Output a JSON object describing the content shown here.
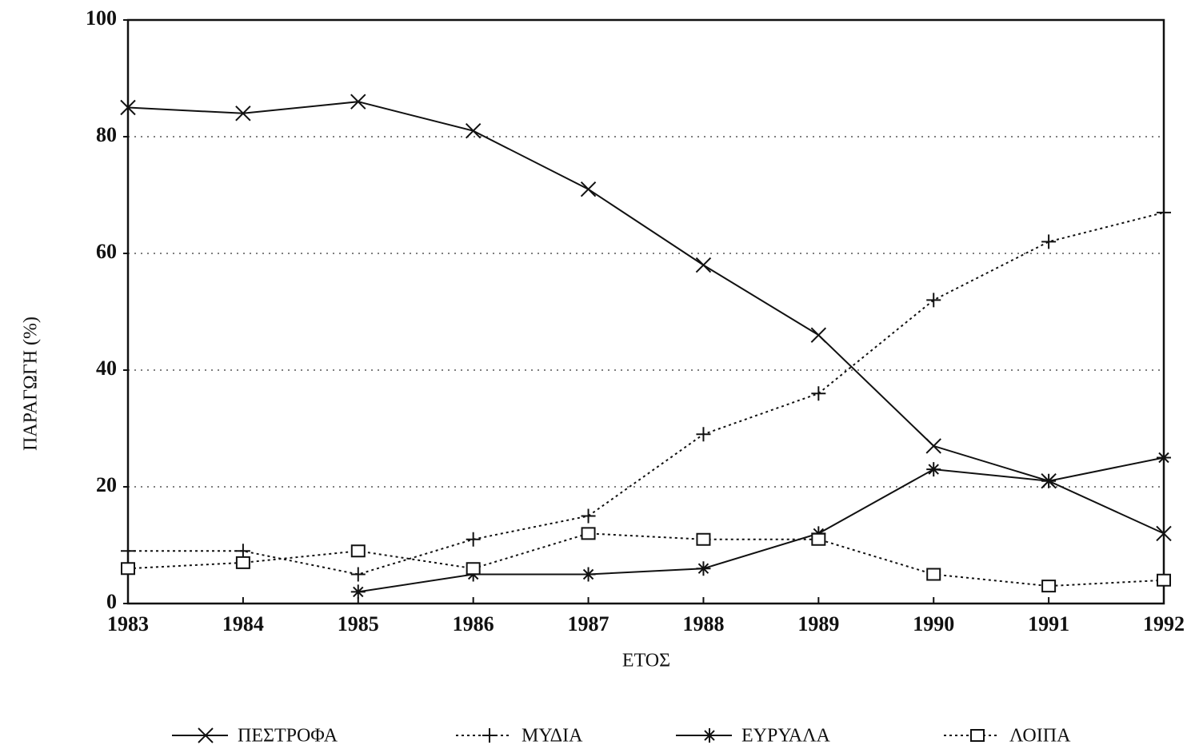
{
  "chart_data": {
    "type": "line",
    "xlabel": "ΕΤΟΣ",
    "ylabel": "ΠΑΡΑΓΩΓΗ (%)",
    "x": [
      1983,
      1984,
      1985,
      1986,
      1987,
      1988,
      1989,
      1990,
      1991,
      1992
    ],
    "xlim": [
      1983,
      1992
    ],
    "xticks": [
      1983,
      1984,
      1985,
      1986,
      1987,
      1988,
      1989,
      1990,
      1991,
      1992
    ],
    "ylim": [
      0,
      100
    ],
    "yticks": [
      0,
      20,
      40,
      60,
      80,
      100
    ],
    "grid": true,
    "series": [
      {
        "name": "ΠΕΣΤΡΟΦΑ",
        "color": "#111111",
        "marker": "x",
        "line_style": "solid",
        "values": [
          85,
          84,
          86,
          81,
          71,
          58,
          46,
          27,
          21,
          12
        ]
      },
      {
        "name": "ΜΥΔΙΑ",
        "color": "#111111",
        "marker": "plus",
        "line_style": "dotted",
        "values": [
          9,
          9,
          5,
          11,
          15,
          29,
          36,
          52,
          62,
          67
        ]
      },
      {
        "name": "ΕΥΡΥΑΛΑ",
        "color": "#111111",
        "marker": "star",
        "line_style": "solid",
        "values": [
          null,
          null,
          2,
          5,
          5,
          6,
          12,
          23,
          21,
          25
        ]
      },
      {
        "name": "ΛΟΙΠΑ",
        "color": "#111111",
        "marker": "square",
        "line_style": "dotted",
        "values": [
          6,
          7,
          9,
          6,
          12,
          11,
          11,
          5,
          3,
          4
        ]
      }
    ]
  }
}
